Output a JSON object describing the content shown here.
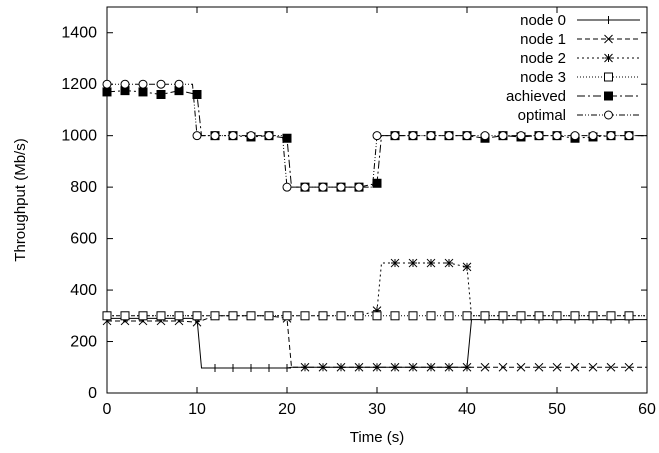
{
  "chart_data": {
    "type": "line",
    "xlabel": "Time (s)",
    "ylabel": "Throughput (Mb/s)",
    "xlim": [
      0,
      60
    ],
    "ylim": [
      0,
      1500
    ],
    "xticks": [
      "0",
      "10",
      "20",
      "30",
      "40",
      "50",
      "60"
    ],
    "yticks": [
      "0",
      "200",
      "400",
      "600",
      "800",
      "1000",
      "1200",
      "1400"
    ],
    "grid": false,
    "legend_position": "top-right",
    "series": [
      {
        "name": "node 0",
        "marker": "plus",
        "dash": "none",
        "x": [
          0,
          2,
          4,
          6,
          8,
          10,
          10.5,
          12,
          14,
          16,
          18,
          20,
          20.5,
          22,
          24,
          26,
          28,
          30,
          32,
          34,
          36,
          38,
          40,
          40.5,
          42,
          44,
          46,
          48,
          50,
          52,
          54,
          56,
          58,
          60
        ],
        "y": [
          290,
          290,
          290,
          290,
          290,
          290,
          97,
          97,
          97,
          97,
          97,
          97,
          100,
          100,
          100,
          100,
          100,
          100,
          100,
          100,
          100,
          100,
          100,
          285,
          285,
          285,
          285,
          285,
          285,
          285,
          285,
          285,
          285,
          285
        ]
      },
      {
        "name": "node 1",
        "marker": "x",
        "dash": "5,3",
        "x": [
          0,
          2,
          4,
          6,
          8,
          10,
          12,
          14,
          16,
          18,
          20,
          20.5,
          22,
          24,
          26,
          28,
          30,
          32,
          34,
          36,
          38,
          40,
          42,
          44,
          46,
          48,
          50,
          52,
          54,
          56,
          58,
          60
        ],
        "y": [
          280,
          280,
          280,
          280,
          280,
          275,
          300,
          300,
          300,
          300,
          290,
          100,
          100,
          100,
          100,
          100,
          100,
          100,
          100,
          100,
          100,
          100,
          100,
          100,
          100,
          100,
          100,
          100,
          100,
          100,
          100,
          100
        ]
      },
      {
        "name": "node 2",
        "marker": "star",
        "dash": "2,3",
        "x": [
          0,
          2,
          4,
          6,
          8,
          10,
          12,
          14,
          16,
          18,
          20,
          22,
          24,
          26,
          28,
          30,
          30.5,
          32,
          34,
          36,
          38,
          40,
          40.5,
          42,
          44,
          46,
          48,
          50,
          52,
          54,
          56,
          58,
          60
        ],
        "y": [
          300,
          300,
          300,
          300,
          300,
          300,
          300,
          300,
          300,
          300,
          300,
          300,
          300,
          300,
          300,
          320,
          505,
          505,
          505,
          505,
          505,
          490,
          300,
          300,
          300,
          300,
          300,
          300,
          300,
          300,
          300,
          300,
          300
        ]
      },
      {
        "name": "node 3",
        "marker": "square",
        "dash": "1,2",
        "x": [
          0,
          2,
          4,
          6,
          8,
          10,
          12,
          14,
          16,
          18,
          20,
          22,
          24,
          26,
          28,
          30,
          32,
          34,
          36,
          38,
          40,
          42,
          44,
          46,
          48,
          50,
          52,
          54,
          56,
          58,
          60
        ],
        "y": [
          300,
          300,
          300,
          300,
          300,
          300,
          300,
          300,
          300,
          300,
          300,
          300,
          300,
          300,
          300,
          300,
          300,
          300,
          300,
          300,
          300,
          300,
          300,
          300,
          300,
          300,
          300,
          300,
          300,
          300,
          300
        ]
      },
      {
        "name": "achieved",
        "marker": "filled-square",
        "dash": "8,3,2,3",
        "x": [
          0,
          2,
          4,
          6,
          8,
          10,
          10.5,
          12,
          14,
          16,
          18,
          20,
          20.5,
          22,
          24,
          26,
          28,
          30,
          30.5,
          32,
          34,
          36,
          38,
          40,
          42,
          44,
          46,
          48,
          50,
          52,
          54,
          56,
          58,
          60
        ],
        "y": [
          1170,
          1175,
          1170,
          1160,
          1175,
          1160,
          1000,
          1000,
          1000,
          995,
          1000,
          990,
          800,
          800,
          800,
          800,
          800,
          815,
          1000,
          1000,
          1000,
          1000,
          1000,
          1000,
          990,
          1000,
          995,
          1000,
          1000,
          990,
          995,
          1000,
          1000,
          1000
        ]
      },
      {
        "name": "optimal",
        "marker": "circle",
        "dash": "6,2,1,2,1,2",
        "x": [
          0,
          2,
          4,
          6,
          8,
          9.5,
          10,
          12,
          14,
          16,
          18,
          19.5,
          20,
          22,
          24,
          26,
          28,
          29.5,
          30,
          32,
          34,
          36,
          38,
          40,
          42,
          44,
          46,
          48,
          50,
          52,
          54,
          56,
          58,
          60
        ],
        "y": [
          1200,
          1200,
          1200,
          1200,
          1200,
          1200,
          1000,
          1000,
          1000,
          1000,
          1000,
          1000,
          800,
          800,
          800,
          800,
          800,
          800,
          1000,
          1000,
          1000,
          1000,
          1000,
          1000,
          1000,
          1000,
          1000,
          1000,
          1000,
          1000,
          1000,
          1000,
          1000,
          1000
        ]
      }
    ]
  }
}
